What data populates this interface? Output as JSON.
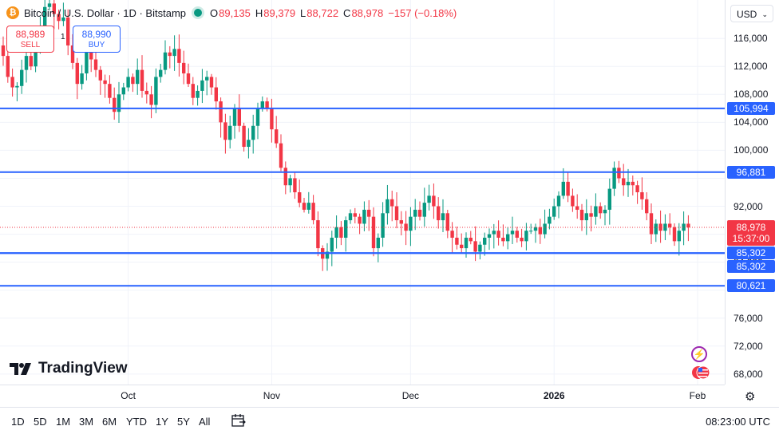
{
  "header": {
    "title": "Bitcoin / U.S. Dollar · 1D · Bitstamp",
    "ohlc": [
      {
        "label": "O",
        "value": "89,135"
      },
      {
        "label": "H",
        "value": "89,379"
      },
      {
        "label": "L",
        "value": "88,722"
      },
      {
        "label": "C",
        "value": "88,978"
      }
    ],
    "change": "−157 (−0.18%)"
  },
  "trade": {
    "sell_price": "88,989",
    "sell_label": "SELL",
    "spread": "1",
    "buy_price": "88,990",
    "buy_label": "BUY"
  },
  "currency": "USD",
  "price_label": {
    "price": "88,978",
    "countdown": "15:37:00"
  },
  "brand": "TradingView",
  "clock": "08:23:00 UTC",
  "ranges": [
    "1D",
    "5D",
    "1M",
    "3M",
    "6M",
    "YTD",
    "1Y",
    "5Y",
    "All"
  ],
  "colors": {
    "up": "#089981",
    "down": "#f23645",
    "level": "#2962ff"
  },
  "chart_data": {
    "type": "candlestick",
    "y_ticks": [
      68000,
      72000,
      76000,
      80000,
      84000,
      88000,
      92000,
      96000,
      100000,
      104000,
      108000,
      112000,
      116000
    ],
    "y_tick_labels": [
      "68,000",
      "72,000",
      "76,000",
      "80,000",
      "84,000",
      "88,000",
      "92,000",
      "96,000",
      "100,000",
      "104,000",
      "108,000",
      "112,000",
      "116,000"
    ],
    "ylim": [
      66500,
      121500
    ],
    "x_tick_labels": [
      {
        "label": "Oct",
        "bold": false
      },
      {
        "label": "Nov",
        "bold": false
      },
      {
        "label": "Dec",
        "bold": false
      },
      {
        "label": "2026",
        "bold": true
      },
      {
        "label": "Feb",
        "bold": false
      }
    ],
    "x_tick_dates": [
      "2025-10-01",
      "2025-11-01",
      "2025-12-01",
      "2026-01-01",
      "2026-02-01"
    ],
    "levels": [
      {
        "value": 105994,
        "label": "105,994"
      },
      {
        "value": 96881,
        "label": "96,881"
      },
      {
        "value": 85302,
        "label": "85,302"
      },
      {
        "value": 85302,
        "label": "85,302"
      },
      {
        "value": 80621,
        "label": "80,621"
      }
    ],
    "last_price": 88978,
    "closes": [
      113500,
      110500,
      109000,
      109200,
      111500,
      113500,
      112000,
      114500,
      117500,
      120500,
      121000,
      119500,
      118500,
      119000,
      115000,
      112500,
      109500,
      111000,
      114500,
      113000,
      111500,
      110000,
      109500,
      107500,
      105500,
      108000,
      109000,
      110500,
      109500,
      111500,
      108500,
      108000,
      106500,
      110500,
      111500,
      114000,
      113500,
      114500,
      112500,
      111000,
      109500,
      107500,
      108500,
      110000,
      110500,
      109000,
      107000,
      104000,
      101500,
      103500,
      106000,
      103500,
      100500,
      101500,
      103500,
      106000,
      107000,
      106000,
      103000,
      101000,
      97500,
      95000,
      96000,
      94000,
      92500,
      91500,
      92500,
      90000,
      86000,
      84500,
      85500,
      87500,
      89000,
      87500,
      90000,
      91000,
      90500,
      89500,
      91500,
      90500,
      86000,
      87500,
      91000,
      93000,
      92000,
      90000,
      89500,
      88500,
      90500,
      91500,
      90500,
      92500,
      93500,
      92000,
      90000,
      91000,
      88500,
      87500,
      86500,
      86000,
      87500,
      87000,
      85500,
      86500,
      87500,
      88000,
      88500,
      87500,
      87000,
      88000,
      88500,
      87500,
      87000,
      88500,
      88500,
      89000,
      88000,
      89500,
      90500,
      92000,
      93500,
      95500,
      93500,
      92000,
      91500,
      90000,
      91000,
      90500,
      92000,
      91000,
      91500,
      94500,
      97500,
      96000,
      95000,
      95500,
      95000,
      94000,
      93000,
      91000,
      88000,
      89500,
      88500,
      89500,
      89000,
      87000,
      88500,
      89500,
      88978
    ]
  }
}
